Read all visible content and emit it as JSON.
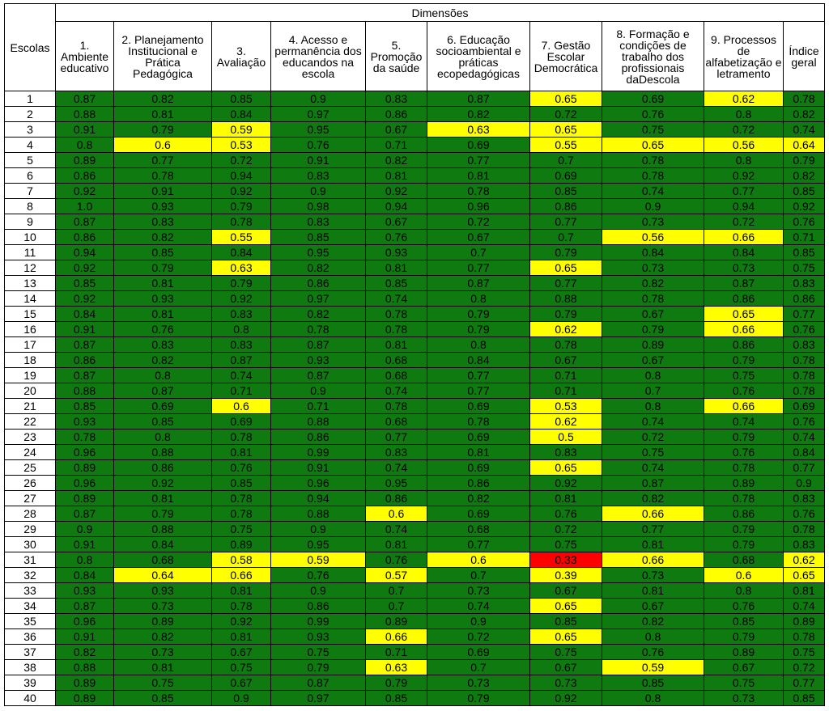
{
  "table": {
    "row_header": "Escolas",
    "group_header": "Dimensões",
    "columns": [
      "1. Ambiente educativo",
      "2. Planejamento Institucional e Prática Pedagógica",
      "3. Avaliação",
      "4. Acesso e permanência dos educandos na escola",
      "5. Promoção da saúde",
      "6. Educação socioambiental e práticas ecopedagógicas",
      "7. Gestão Escolar Democrática",
      "8. Formação e condições de trabalho dos profissionais daDescola",
      "9. Processos de alfabetização e letramento",
      "Índice geral"
    ],
    "colors": {
      "green": "#0f7a10",
      "yellow": "#ffff00",
      "red": "#ff0000"
    },
    "rows": [
      {
        "school": "1",
        "values": [
          "0.87",
          "0.82",
          "0.85",
          "0.9",
          "0.83",
          "0.87",
          "0.65",
          "0.69",
          "0.62",
          "0.78"
        ],
        "status": [
          "g",
          "g",
          "g",
          "g",
          "g",
          "g",
          "y",
          "g",
          "y",
          "g"
        ]
      },
      {
        "school": "2",
        "values": [
          "0.88",
          "0.81",
          "0.84",
          "0.97",
          "0.86",
          "0.82",
          "0.72",
          "0.76",
          "0.8",
          "0.82"
        ],
        "status": [
          "g",
          "g",
          "g",
          "g",
          "g",
          "g",
          "g",
          "g",
          "g",
          "g"
        ]
      },
      {
        "school": "3",
        "values": [
          "0.91",
          "0.79",
          "0.59",
          "0.95",
          "0.67",
          "0.63",
          "0.65",
          "0.75",
          "0.72",
          "0.74"
        ],
        "status": [
          "g",
          "g",
          "y",
          "g",
          "g",
          "y",
          "y",
          "g",
          "g",
          "g"
        ]
      },
      {
        "school": "4",
        "values": [
          "0.8",
          "0.6",
          "0.53",
          "0.76",
          "0.71",
          "0.69",
          "0.55",
          "0.65",
          "0.56",
          "0.64"
        ],
        "status": [
          "g",
          "y",
          "y",
          "g",
          "g",
          "g",
          "y",
          "y",
          "y",
          "y"
        ]
      },
      {
        "school": "5",
        "values": [
          "0.89",
          "0.77",
          "0.72",
          "0.91",
          "0.82",
          "0.77",
          "0.7",
          "0.78",
          "0.8",
          "0.79"
        ],
        "status": [
          "g",
          "g",
          "g",
          "g",
          "g",
          "g",
          "g",
          "g",
          "g",
          "g"
        ]
      },
      {
        "school": "6",
        "values": [
          "0.86",
          "0.78",
          "0.94",
          "0.83",
          "0.81",
          "0.81",
          "0.69",
          "0.78",
          "0.92",
          "0.82"
        ],
        "status": [
          "g",
          "g",
          "g",
          "g",
          "g",
          "g",
          "g",
          "g",
          "g",
          "g"
        ]
      },
      {
        "school": "7",
        "values": [
          "0.92",
          "0.91",
          "0.92",
          "0.9",
          "0.92",
          "0.78",
          "0.85",
          "0.74",
          "0.77",
          "0.85"
        ],
        "status": [
          "g",
          "g",
          "g",
          "g",
          "g",
          "g",
          "g",
          "g",
          "g",
          "g"
        ]
      },
      {
        "school": "8",
        "values": [
          "1.0",
          "0.93",
          "0.79",
          "0.98",
          "0.94",
          "0.96",
          "0.86",
          "0.9",
          "0.94",
          "0.92"
        ],
        "status": [
          "g",
          "g",
          "g",
          "g",
          "g",
          "g",
          "g",
          "g",
          "g",
          "g"
        ]
      },
      {
        "school": "9",
        "values": [
          "0.87",
          "0.83",
          "0.78",
          "0.83",
          "0.67",
          "0.72",
          "0.77",
          "0.73",
          "0.72",
          "0.76"
        ],
        "status": [
          "g",
          "g",
          "g",
          "g",
          "g",
          "g",
          "g",
          "g",
          "g",
          "g"
        ]
      },
      {
        "school": "10",
        "values": [
          "0.86",
          "0.82",
          "0.55",
          "0.85",
          "0.76",
          "0.67",
          "0.7",
          "0.56",
          "0.66",
          "0.71"
        ],
        "status": [
          "g",
          "g",
          "y",
          "g",
          "g",
          "g",
          "g",
          "y",
          "y",
          "g"
        ]
      },
      {
        "school": "11",
        "values": [
          "0.94",
          "0.85",
          "0.84",
          "0.95",
          "0.93",
          "0.7",
          "0.79",
          "0.84",
          "0.84",
          "0.85"
        ],
        "status": [
          "g",
          "g",
          "g",
          "g",
          "g",
          "g",
          "g",
          "g",
          "g",
          "g"
        ]
      },
      {
        "school": "12",
        "values": [
          "0.92",
          "0.79",
          "0.63",
          "0.82",
          "0.81",
          "0.77",
          "0.65",
          "0.73",
          "0.73",
          "0.75"
        ],
        "status": [
          "g",
          "g",
          "y",
          "g",
          "g",
          "g",
          "y",
          "g",
          "g",
          "g"
        ]
      },
      {
        "school": "13",
        "values": [
          "0.85",
          "0.81",
          "0.79",
          "0.86",
          "0.85",
          "0.87",
          "0.77",
          "0.82",
          "0.87",
          "0.83"
        ],
        "status": [
          "g",
          "g",
          "g",
          "g",
          "g",
          "g",
          "g",
          "g",
          "g",
          "g"
        ]
      },
      {
        "school": "14",
        "values": [
          "0.92",
          "0.93",
          "0.92",
          "0.97",
          "0.74",
          "0.8",
          "0.88",
          "0.78",
          "0.86",
          "0.86"
        ],
        "status": [
          "g",
          "g",
          "g",
          "g",
          "g",
          "g",
          "g",
          "g",
          "g",
          "g"
        ]
      },
      {
        "school": "15",
        "values": [
          "0.84",
          "0.81",
          "0.83",
          "0.82",
          "0.78",
          "0.79",
          "0.79",
          "0.67",
          "0.65",
          "0.77"
        ],
        "status": [
          "g",
          "g",
          "g",
          "g",
          "g",
          "g",
          "g",
          "g",
          "y",
          "g"
        ]
      },
      {
        "school": "16",
        "values": [
          "0.91",
          "0.76",
          "0.8",
          "0.78",
          "0.78",
          "0.79",
          "0.62",
          "0.79",
          "0.66",
          "0.76"
        ],
        "status": [
          "g",
          "g",
          "g",
          "g",
          "g",
          "g",
          "y",
          "g",
          "y",
          "g"
        ]
      },
      {
        "school": "17",
        "values": [
          "0.87",
          "0.83",
          "0.83",
          "0.87",
          "0.81",
          "0.8",
          "0.78",
          "0.89",
          "0.86",
          "0.83"
        ],
        "status": [
          "g",
          "g",
          "g",
          "g",
          "g",
          "g",
          "g",
          "g",
          "g",
          "g"
        ]
      },
      {
        "school": "18",
        "values": [
          "0.86",
          "0.82",
          "0.87",
          "0.93",
          "0.68",
          "0.84",
          "0.67",
          "0.67",
          "0.79",
          "0.78"
        ],
        "status": [
          "g",
          "g",
          "g",
          "g",
          "g",
          "g",
          "g",
          "g",
          "g",
          "g"
        ]
      },
      {
        "school": "19",
        "values": [
          "0.87",
          "0.8",
          "0.74",
          "0.87",
          "0.68",
          "0.77",
          "0.71",
          "0.8",
          "0.75",
          "0.78"
        ],
        "status": [
          "g",
          "g",
          "g",
          "g",
          "g",
          "g",
          "g",
          "g",
          "g",
          "g"
        ]
      },
      {
        "school": "20",
        "values": [
          "0.88",
          "0.87",
          "0.71",
          "0.9",
          "0.74",
          "0.77",
          "0.71",
          "0.7",
          "0.76",
          "0.78"
        ],
        "status": [
          "g",
          "g",
          "g",
          "g",
          "g",
          "g",
          "g",
          "g",
          "g",
          "g"
        ]
      },
      {
        "school": "21",
        "values": [
          "0.85",
          "0.69",
          "0.6",
          "0.71",
          "0.78",
          "0.69",
          "0.53",
          "0.8",
          "0.66",
          "0.69"
        ],
        "status": [
          "g",
          "g",
          "y",
          "g",
          "g",
          "g",
          "y",
          "g",
          "y",
          "g"
        ]
      },
      {
        "school": "22",
        "values": [
          "0.93",
          "0.85",
          "0.69",
          "0.88",
          "0.68",
          "0.78",
          "0.62",
          "0.74",
          "0.74",
          "0.76"
        ],
        "status": [
          "g",
          "g",
          "g",
          "g",
          "g",
          "g",
          "y",
          "g",
          "g",
          "g"
        ]
      },
      {
        "school": "23",
        "values": [
          "0.78",
          "0.8",
          "0.78",
          "0.86",
          "0.77",
          "0.69",
          "0.5",
          "0.72",
          "0.79",
          "0.74"
        ],
        "status": [
          "g",
          "g",
          "g",
          "g",
          "g",
          "g",
          "y",
          "g",
          "g",
          "g"
        ]
      },
      {
        "school": "24",
        "values": [
          "0.96",
          "0.88",
          "0.81",
          "0.99",
          "0.83",
          "0.81",
          "0.83",
          "0.75",
          "0.76",
          "0.84"
        ],
        "status": [
          "g",
          "g",
          "g",
          "g",
          "g",
          "g",
          "g",
          "g",
          "g",
          "g"
        ]
      },
      {
        "school": "25",
        "values": [
          "0.89",
          "0.86",
          "0.76",
          "0.91",
          "0.74",
          "0.69",
          "0.65",
          "0.74",
          "0.78",
          "0.77"
        ],
        "status": [
          "g",
          "g",
          "g",
          "g",
          "g",
          "g",
          "y",
          "g",
          "g",
          "g"
        ]
      },
      {
        "school": "26",
        "values": [
          "0.96",
          "0.92",
          "0.85",
          "0.96",
          "0.95",
          "0.86",
          "0.92",
          "0.87",
          "0.89",
          "0.9"
        ],
        "status": [
          "g",
          "g",
          "g",
          "g",
          "g",
          "g",
          "g",
          "g",
          "g",
          "g"
        ]
      },
      {
        "school": "27",
        "values": [
          "0.89",
          "0.81",
          "0.78",
          "0.94",
          "0.86",
          "0.82",
          "0.81",
          "0.82",
          "0.78",
          "0.83"
        ],
        "status": [
          "g",
          "g",
          "g",
          "g",
          "g",
          "g",
          "g",
          "g",
          "g",
          "g"
        ]
      },
      {
        "school": "28",
        "values": [
          "0.87",
          "0.79",
          "0.78",
          "0.88",
          "0.6",
          "0.69",
          "0.76",
          "0.66",
          "0.86",
          "0.76"
        ],
        "status": [
          "g",
          "g",
          "g",
          "g",
          "y",
          "g",
          "g",
          "y",
          "g",
          "g"
        ]
      },
      {
        "school": "29",
        "values": [
          "0.9",
          "0.88",
          "0.75",
          "0.9",
          "0.74",
          "0.68",
          "0.72",
          "0.77",
          "0.79",
          "0.78"
        ],
        "status": [
          "g",
          "g",
          "g",
          "g",
          "g",
          "g",
          "g",
          "g",
          "g",
          "g"
        ]
      },
      {
        "school": "30",
        "values": [
          "0.91",
          "0.84",
          "0.89",
          "0.95",
          "0.81",
          "0.77",
          "0.75",
          "0.81",
          "0.79",
          "0.83"
        ],
        "status": [
          "g",
          "g",
          "g",
          "g",
          "g",
          "g",
          "g",
          "g",
          "g",
          "g"
        ]
      },
      {
        "school": "31",
        "values": [
          "0.8",
          "0.68",
          "0.58",
          "0.59",
          "0.76",
          "0.6",
          "0.33",
          "0.66",
          "0.68",
          "0.62"
        ],
        "status": [
          "g",
          "g",
          "y",
          "y",
          "g",
          "y",
          "r",
          "y",
          "g",
          "y"
        ]
      },
      {
        "school": "32",
        "values": [
          "0.84",
          "0.64",
          "0.66",
          "0.76",
          "0.57",
          "0.7",
          "0.39",
          "0.73",
          "0.6",
          "0.65"
        ],
        "status": [
          "g",
          "y",
          "y",
          "g",
          "y",
          "g",
          "y",
          "g",
          "y",
          "y"
        ]
      },
      {
        "school": "33",
        "values": [
          "0.93",
          "0.93",
          "0.81",
          "0.9",
          "0.7",
          "0.73",
          "0.67",
          "0.81",
          "0.8",
          "0.81"
        ],
        "status": [
          "g",
          "g",
          "g",
          "g",
          "g",
          "g",
          "g",
          "g",
          "g",
          "g"
        ]
      },
      {
        "school": "34",
        "values": [
          "0.87",
          "0.73",
          "0.78",
          "0.86",
          "0.7",
          "0.74",
          "0.65",
          "0.67",
          "0.76",
          "0.74"
        ],
        "status": [
          "g",
          "g",
          "g",
          "g",
          "g",
          "g",
          "y",
          "g",
          "g",
          "g"
        ]
      },
      {
        "school": "35",
        "values": [
          "0.96",
          "0.89",
          "0.92",
          "0.99",
          "0.89",
          "0.9",
          "0.85",
          "0.82",
          "0.85",
          "0.89"
        ],
        "status": [
          "g",
          "g",
          "g",
          "g",
          "g",
          "g",
          "g",
          "g",
          "g",
          "g"
        ]
      },
      {
        "school": "36",
        "values": [
          "0.91",
          "0.82",
          "0.81",
          "0.93",
          "0.66",
          "0.72",
          "0.65",
          "0.8",
          "0.79",
          "0.78"
        ],
        "status": [
          "g",
          "g",
          "g",
          "g",
          "y",
          "g",
          "y",
          "g",
          "g",
          "g"
        ]
      },
      {
        "school": "37",
        "values": [
          "0.82",
          "0.73",
          "0.67",
          "0.75",
          "0.71",
          "0.69",
          "0.75",
          "0.76",
          "0.89",
          "0.75"
        ],
        "status": [
          "g",
          "g",
          "g",
          "g",
          "g",
          "g",
          "g",
          "g",
          "g",
          "g"
        ]
      },
      {
        "school": "38",
        "values": [
          "0.88",
          "0.81",
          "0.75",
          "0.79",
          "0.63",
          "0.7",
          "0.67",
          "0.59",
          "0.67",
          "0.72"
        ],
        "status": [
          "g",
          "g",
          "g",
          "g",
          "y",
          "g",
          "g",
          "y",
          "g",
          "g"
        ]
      },
      {
        "school": "39",
        "values": [
          "0.89",
          "0.75",
          "0.67",
          "0.87",
          "0.79",
          "0.73",
          "0.73",
          "0.85",
          "0.75",
          "0.77"
        ],
        "status": [
          "g",
          "g",
          "g",
          "g",
          "g",
          "g",
          "g",
          "g",
          "g",
          "g"
        ]
      },
      {
        "school": "40",
        "values": [
          "0.89",
          "0.85",
          "0.9",
          "0.97",
          "0.85",
          "0.79",
          "0.92",
          "0.8",
          "0.73",
          "0.85"
        ],
        "status": [
          "g",
          "g",
          "g",
          "g",
          "g",
          "g",
          "g",
          "g",
          "g",
          "g"
        ]
      }
    ]
  }
}
